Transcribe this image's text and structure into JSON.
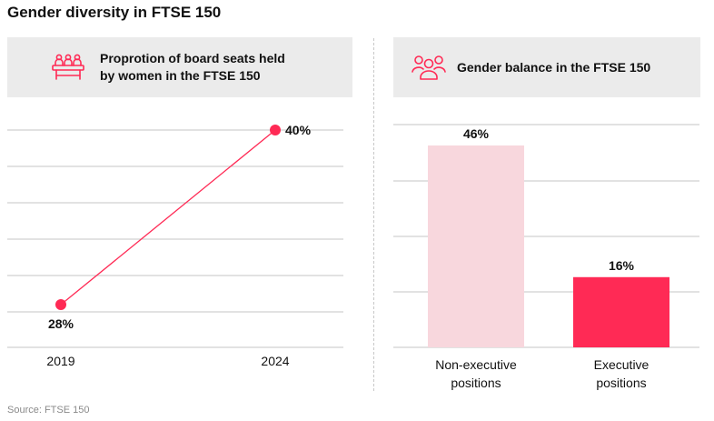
{
  "title": "Gender diversity in FTSE 150",
  "source": "Source: FTSE 150",
  "colors": {
    "accent": "#ff2a55",
    "light_bar": "#f8d7dd",
    "header_bg": "#ebebeb",
    "grid": "#c4c4c4"
  },
  "left_panel": {
    "icon": "boardroom-icon",
    "heading_line1": "Proprotion of board seats held",
    "heading_line2": "by women in the FTSE 150"
  },
  "right_panel": {
    "icon": "people-group-icon",
    "heading": "Gender balance in the FTSE 150"
  },
  "chart_data": [
    {
      "type": "line",
      "x": [
        "2019",
        "2024"
      ],
      "series": [
        {
          "values": [
            28,
            40
          ]
        }
      ],
      "data_labels": [
        "28%",
        "40%"
      ],
      "ylim": [
        25,
        42
      ],
      "grid": true,
      "xlabel": "",
      "ylabel": ""
    },
    {
      "type": "bar",
      "categories": [
        [
          "Non-executive",
          "positions"
        ],
        [
          "Executive",
          "positions"
        ]
      ],
      "values": [
        46,
        16
      ],
      "data_labels": [
        "46%",
        "16%"
      ],
      "bar_colors": [
        "#f8d7dd",
        "#ff2a55"
      ],
      "ylim": [
        0,
        54
      ],
      "grid": true,
      "xlabel": "",
      "ylabel": ""
    }
  ]
}
